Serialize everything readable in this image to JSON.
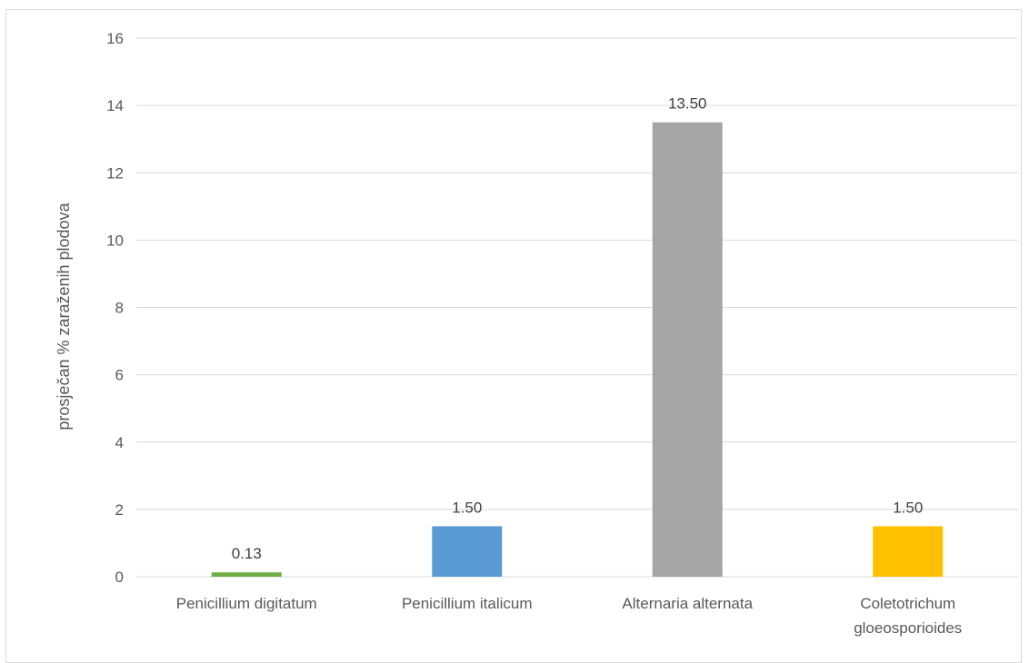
{
  "chart_data": {
    "type": "bar",
    "categories": [
      [
        "Penicillium digitatum"
      ],
      [
        "Penicillium italicum"
      ],
      [
        "Alternaria alternata"
      ],
      [
        "Coletotrichum",
        "gloeosporioides"
      ]
    ],
    "values": [
      0.13,
      1.5,
      13.5,
      1.5
    ],
    "data_labels": [
      "0.13",
      "1.50",
      "13.50",
      "1.50"
    ],
    "colors": [
      "#70ad47",
      "#5b9bd5",
      "#a5a5a5",
      "#ffc000"
    ],
    "ylabel": "prosječan % zaraženih plodova",
    "xlabel": "",
    "title": "",
    "ylim": [
      0,
      16
    ],
    "yticks": [
      0,
      2,
      4,
      6,
      8,
      10,
      12,
      14,
      16
    ],
    "grid": true,
    "legend": "none"
  }
}
